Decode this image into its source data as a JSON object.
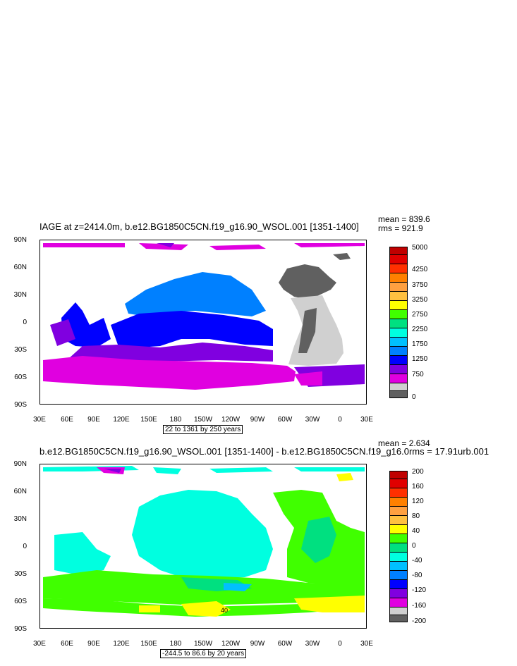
{
  "panel1": {
    "title": "IAGE at z=2414.0m, b.e12.BG1850C5CN.f19_g16.90_WSOL.001 [1351-1400]",
    "mean": "mean = 839.6",
    "rms": "rms = 921.9",
    "contour_info": "22 to 1361 by 250 years",
    "colorbar": {
      "labels": [
        "5000",
        "4250",
        "3750",
        "3250",
        "2750",
        "2250",
        "1750",
        "1250",
        "750",
        "0"
      ],
      "colors": [
        "#c00000",
        "#e00000",
        "#ff3000",
        "#ff8000",
        "#ffa040",
        "#ffc040",
        "#ffff00",
        "#40ff00",
        "#00e080",
        "#00ffe0",
        "#00c0ff",
        "#0080ff",
        "#0000ff",
        "#8000e0",
        "#e000e0",
        "#d0d0d0",
        "#606060"
      ]
    }
  },
  "panel2": {
    "title": "b.e12.BG1850C5CN.f19_g16.90_WSOL.001 [1351-1400] - b.e12.BG1850C5CN.f19_g16.0rms = 17.91urb.001",
    "mean": "mean = 2.634",
    "contour_info": "-244.5 to 86.6 by 20 years",
    "map_label_40": "40",
    "colorbar": {
      "labels": [
        "200",
        "160",
        "120",
        "80",
        "40",
        "0",
        "-40",
        "-80",
        "-120",
        "-160",
        "-200"
      ],
      "colors": [
        "#c00000",
        "#e00000",
        "#ff3000",
        "#ff8000",
        "#ffa040",
        "#ffc040",
        "#ffff00",
        "#40ff00",
        "#00e080",
        "#00ffe0",
        "#00c0ff",
        "#0080ff",
        "#0000ff",
        "#8000e0",
        "#e000e0",
        "#d0d0d0",
        "#606060"
      ]
    }
  },
  "axes": {
    "y_labels": [
      "90N",
      "60N",
      "30N",
      "0",
      "30S",
      "60S",
      "90S"
    ],
    "x_labels": [
      "30E",
      "60E",
      "90E",
      "120E",
      "150E",
      "180",
      "150W",
      "120W",
      "90W",
      "60W",
      "30W",
      "0",
      "30E"
    ]
  }
}
